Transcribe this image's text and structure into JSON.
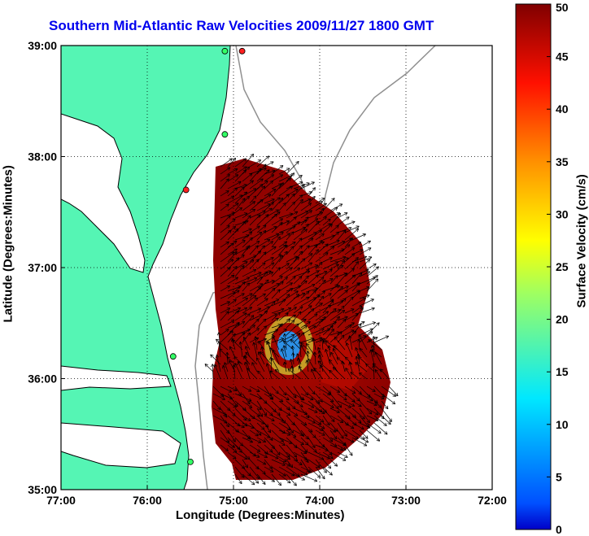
{
  "title": "Southern Mid-Atlantic Raw Velocities 2009/11/27 1800 GMT",
  "xlabel": "Longitude (Degrees:Minutes)",
  "ylabel": "Latitude (Degrees:Minutes)",
  "colorbar": {
    "label": "Surface Velocity (cm/s)",
    "ticks": [
      "0",
      "5",
      "10",
      "15",
      "20",
      "25",
      "30",
      "35",
      "40",
      "45",
      "50"
    ],
    "min": 0,
    "max": 50
  },
  "axes": {
    "x_ticks": [
      "77:00",
      "76:00",
      "75:00",
      "74:00",
      "73:00",
      "72:00"
    ],
    "y_ticks": [
      "39:00",
      "38:00",
      "37:00",
      "36:00",
      "35:00"
    ],
    "lon_range": [
      -77,
      -72
    ],
    "lat_range": [
      35,
      39
    ]
  },
  "colors": {
    "land": "#55f5b4",
    "coast": "#000000",
    "bathymetry": "#909090",
    "grid": "#000000",
    "title": "#0000ee"
  },
  "stations": [
    {
      "lon": -74.9,
      "lat": 38.95,
      "color": "#ff2020"
    },
    {
      "lon": -75.1,
      "lat": 38.95,
      "color": "#33ff66"
    },
    {
      "lon": -75.1,
      "lat": 38.2,
      "color": "#33ff66"
    },
    {
      "lon": -75.55,
      "lat": 37.7,
      "color": "#ff2020"
    },
    {
      "lon": -75.7,
      "lat": 36.2,
      "color": "#33ff66"
    },
    {
      "lon": -75.5,
      "lat": 35.25,
      "color": "#33ff66"
    }
  ]
}
